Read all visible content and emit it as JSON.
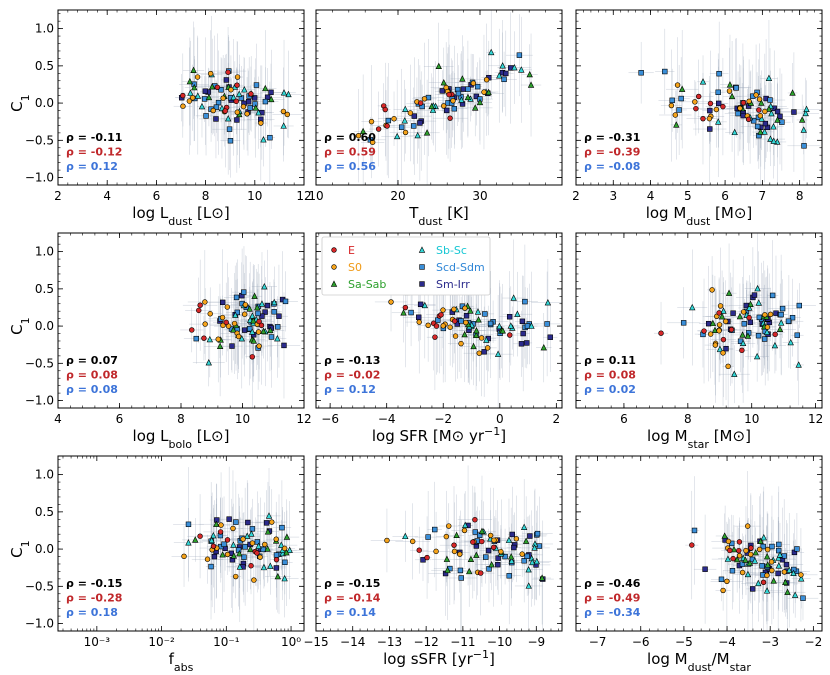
{
  "chart_data": {
    "type": "scatter",
    "y_axis_label": "C",
    "y_axis_label_sub": "1",
    "ylim": [
      -1.1,
      1.25
    ],
    "yticks": [
      -1.0,
      -0.5,
      0.0,
      0.5,
      1.0
    ],
    "ytick_labels": [
      "−1.0",
      "−0.5",
      "0.0",
      "0.5",
      "1.0"
    ],
    "colors": {
      "E": "#d62728",
      "S0": "#f5a31a",
      "Sa-Sab": "#2ca02c",
      "Sb-Sc": "#33d6d6",
      "Scd-Sdm": "#3a8fd9",
      "Sm-Irr": "#2b2b8c",
      "rho_all": "#000000",
      "rho_early": "#c0282b",
      "rho_late": "#3d74d9",
      "errorbar": "#9aa6b8",
      "edge": "#000000"
    },
    "legend": [
      {
        "name": "E",
        "marker": "circle",
        "color": "#d62728",
        "text_color": "#d62728"
      },
      {
        "name": "Sb-Sc",
        "marker": "triangle",
        "color": "#33d6d6",
        "text_color": "#17c7d4"
      },
      {
        "name": "S0",
        "marker": "circle",
        "color": "#f5a31a",
        "text_color": "#f09a16"
      },
      {
        "name": "Scd-Sdm",
        "marker": "square",
        "color": "#3a8fd9",
        "text_color": "#2f86d6"
      },
      {
        "name": "Sa-Sab",
        "marker": "triangle",
        "color": "#2ca02c",
        "text_color": "#2ca02c"
      },
      {
        "name": "Sm-Irr",
        "marker": "square",
        "color": "#2b2b8c",
        "text_color": "#2b2b8c"
      }
    ],
    "panels": [
      {
        "id": "ldust",
        "xlabel_main": "log L",
        "xlabel_sub": "dust",
        "xlabel_rest": " [L",
        "xlabel_sym": "⊙",
        "xlabel_end": "]",
        "xscale": "linear",
        "xlim": [
          2,
          12
        ],
        "xticks": [
          2,
          4,
          6,
          8,
          10,
          12
        ],
        "xtick_labels": [
          "2",
          "4",
          "6",
          "8",
          "10",
          "12"
        ],
        "rho": [
          "ρ = -0.11",
          "ρ = -0.12",
          "ρ = 0.12"
        ],
        "relation": {
          "x0": 7.0,
          "x1": 11.5,
          "y0": 0.18,
          "y1": -0.18,
          "xc": 8.8,
          "xs": 1.1,
          "ys": 0.2
        }
      },
      {
        "id": "tdust",
        "xlabel_main": "T",
        "xlabel_sub": "dust",
        "xlabel_rest": " [K]",
        "xlabel_sym": "",
        "xlabel_end": "",
        "xscale": "linear",
        "xlim": [
          10,
          40
        ],
        "xticks": [
          10,
          20,
          30
        ],
        "xtick_labels": [
          "10",
          "20",
          "30"
        ],
        "rho": [
          "ρ = 0.60",
          "ρ = 0.59",
          "ρ = 0.56"
        ],
        "relation": {
          "x0": 13,
          "x1": 37,
          "y0": -0.55,
          "y1": 0.55,
          "xc": 25,
          "xs": 5,
          "ys": 0.13
        }
      },
      {
        "id": "mdust",
        "xlabel_main": "log M",
        "xlabel_sub": "dust",
        "xlabel_rest": " [M",
        "xlabel_sym": "⊙",
        "xlabel_end": "]",
        "xscale": "linear",
        "xlim": [
          2,
          8.6
        ],
        "xticks": [
          2,
          3,
          4,
          5,
          6,
          7,
          8
        ],
        "xtick_labels": [
          "2",
          "3",
          "4",
          "5",
          "6",
          "7",
          "8"
        ],
        "rho": [
          "ρ = -0.31",
          "ρ = -0.39",
          "ρ = -0.08"
        ],
        "relation": {
          "x0": 3.0,
          "x1": 8.2,
          "y0": 0.22,
          "y1": -0.22,
          "xc": 6.3,
          "xs": 0.9,
          "ys": 0.2
        }
      },
      {
        "id": "lbolo",
        "xlabel_main": "log L",
        "xlabel_sub": "bolo",
        "xlabel_rest": " [L",
        "xlabel_sym": "⊙",
        "xlabel_end": "]",
        "xscale": "linear",
        "xlim": [
          4,
          12
        ],
        "xticks": [
          4,
          6,
          8,
          10,
          12
        ],
        "xtick_labels": [
          "4",
          "6",
          "8",
          "10",
          "12"
        ],
        "rho": [
          "ρ = 0.07",
          "ρ = 0.08",
          "ρ = 0.08"
        ],
        "relation": {
          "x0": 6.0,
          "x1": 11.5,
          "y0": -0.02,
          "y1": 0.05,
          "xc": 10.0,
          "xs": 0.7,
          "ys": 0.2
        }
      },
      {
        "id": "sfr",
        "xlabel_main": "log SFR [M",
        "xlabel_sub": "",
        "xlabel_rest": "",
        "xlabel_sym": "⊙",
        "xlabel_end": " yr",
        "xlabel_sup": "−1",
        "xlabel_tail": "]",
        "xscale": "linear",
        "xlim": [
          -6.5,
          2.2
        ],
        "xticks": [
          -6,
          -4,
          -2,
          0,
          2
        ],
        "xtick_labels": [
          "−6",
          "−4",
          "−2",
          "0",
          "2"
        ],
        "rho": [
          "ρ = -0.13",
          "ρ = -0.02",
          "ρ = 0.12"
        ],
        "relation": {
          "x0": -4.0,
          "x1": 1.8,
          "y0": 0.1,
          "y1": -0.08,
          "xc": -1.2,
          "xs": 1.3,
          "ys": 0.2
        }
      },
      {
        "id": "mstar",
        "xlabel_main": "log M",
        "xlabel_sub": "star",
        "xlabel_rest": " [M",
        "xlabel_sym": "⊙",
        "xlabel_end": "]",
        "xscale": "linear",
        "xlim": [
          4.5,
          12.2
        ],
        "xticks": [
          6,
          8,
          10,
          12
        ],
        "xtick_labels": [
          "6",
          "8",
          "10",
          "12"
        ],
        "rho": [
          "ρ = 0.11",
          "ρ = 0.08",
          "ρ = 0.02"
        ],
        "relation": {
          "x0": 5.5,
          "x1": 12.0,
          "y0": -0.05,
          "y1": 0.08,
          "xc": 9.8,
          "xs": 0.8,
          "ys": 0.2
        }
      },
      {
        "id": "fabs",
        "xlabel_main": "f",
        "xlabel_sub": "abs",
        "xlabel_rest": "",
        "xlabel_sym": "",
        "xlabel_end": "",
        "xscale": "log",
        "xlim": [
          -3.6,
          0.2
        ],
        "xticks": [
          -3,
          -2,
          -1,
          0
        ],
        "xtick_labels": [
          "10⁻³",
          "10⁻²",
          "10⁻¹",
          "10⁰"
        ],
        "rho": [
          "ρ = -0.15",
          "ρ = -0.28",
          "ρ = 0.18"
        ],
        "relation": {
          "x0": -3.5,
          "x1": 0.0,
          "y0": 0.2,
          "y1": 0.0,
          "xc": -0.8,
          "xs": 0.45,
          "ys": 0.2
        }
      },
      {
        "id": "ssfr",
        "xlabel_main": "log sSFR [yr",
        "xlabel_sub": "",
        "xlabel_rest": "",
        "xlabel_sym": "",
        "xlabel_end": "",
        "xlabel_sup": "−1",
        "xlabel_tail": "]",
        "xscale": "linear",
        "xlim": [
          -15,
          -8.3
        ],
        "xticks": [
          -15,
          -14,
          -13,
          -12,
          -11,
          -10,
          -9
        ],
        "xtick_labels": [
          "−15",
          "−14",
          "−13",
          "−12",
          "−11",
          "−10",
          "−9"
        ],
        "rho": [
          "ρ = -0.15",
          "ρ = -0.14",
          "ρ = 0.14"
        ],
        "relation": {
          "x0": -13.3,
          "x1": -8.8,
          "y0": 0.12,
          "y1": -0.05,
          "xc": -10.5,
          "xs": 0.9,
          "ys": 0.2
        }
      },
      {
        "id": "mratio",
        "xlabel_main": "log M",
        "xlabel_sub": "dust",
        "xlabel_rest": "/M",
        "xlabel_sym": "",
        "xlabel_end": "",
        "xlabel_sub2": "star",
        "xscale": "linear",
        "xlim": [
          -7.5,
          -1.8
        ],
        "xticks": [
          -7,
          -6,
          -5,
          -4,
          -3,
          -2
        ],
        "xtick_labels": [
          "−7",
          "−6",
          "−5",
          "−4",
          "−3",
          "−2"
        ],
        "rho": [
          "ρ = -0.46",
          "ρ = -0.49",
          "ρ = -0.34"
        ],
        "relation": {
          "x0": -6.3,
          "x1": -2.2,
          "y0": 0.35,
          "y1": -0.35,
          "xc": -3.2,
          "xs": 0.55,
          "ys": 0.18
        }
      }
    ]
  }
}
